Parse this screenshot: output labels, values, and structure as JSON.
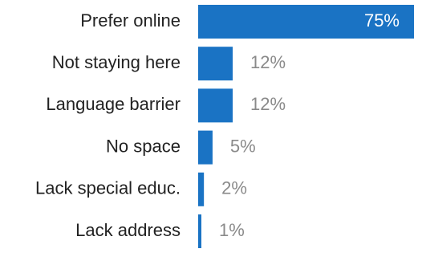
{
  "chart_data": {
    "type": "bar",
    "orientation": "horizontal",
    "categories": [
      "Prefer online",
      "Not staying here",
      "Language barrier",
      "No space",
      "Lack special educ.",
      "Lack address"
    ],
    "values": [
      75,
      12,
      12,
      5,
      2,
      1
    ],
    "value_labels": [
      "75%",
      "12%",
      "12%",
      "5%",
      "2%",
      "1%"
    ],
    "xlim": [
      0,
      75
    ],
    "grid": false,
    "legend": "none",
    "bar_color": "#1a73c4",
    "label_color": "#222222",
    "value_color": "#8a8a8a",
    "inside_value_color": "#ffffff"
  }
}
